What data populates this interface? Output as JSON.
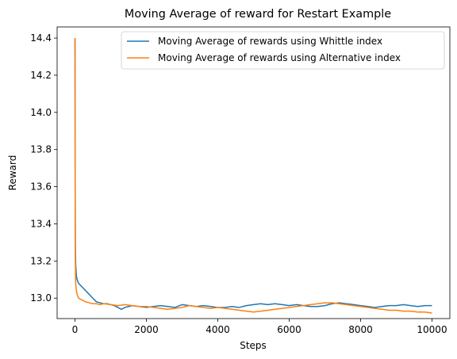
{
  "chart_data": {
    "type": "line",
    "title": "Moving Average of reward for Restart Example",
    "xlabel": "Steps",
    "ylabel": "Reward",
    "xlim": [
      -500,
      10500
    ],
    "ylim": [
      12.89,
      14.46
    ],
    "x_ticks": [
      0,
      2000,
      4000,
      6000,
      8000,
      10000
    ],
    "x_tick_labels": [
      "0",
      "2000",
      "4000",
      "6000",
      "8000",
      "10000"
    ],
    "y_ticks": [
      13.0,
      13.2,
      13.4,
      13.6,
      13.8,
      14.0,
      14.2,
      14.4
    ],
    "y_tick_labels": [
      "13.0",
      "13.2",
      "13.4",
      "13.6",
      "13.8",
      "14.0",
      "14.2",
      "14.4"
    ],
    "grid": false,
    "legend_position": "top-right",
    "series": [
      {
        "name": "Moving Average of rewards using Whittle index",
        "color": "#1f77b4",
        "x": [
          1,
          5,
          10,
          20,
          40,
          60,
          80,
          100,
          150,
          200,
          250,
          300,
          350,
          400,
          450,
          500,
          550,
          600,
          700,
          800,
          900,
          1000,
          1100,
          1200,
          1300,
          1400,
          1500,
          1600,
          1800,
          2000,
          2200,
          2400,
          2600,
          2800,
          3000,
          3200,
          3400,
          3600,
          3800,
          4000,
          4200,
          4400,
          4600,
          4800,
          5000,
          5200,
          5400,
          5600,
          5800,
          6000,
          6200,
          6400,
          6600,
          6800,
          7000,
          7200,
          7400,
          7600,
          7800,
          8000,
          8200,
          8400,
          8600,
          8800,
          9000,
          9200,
          9400,
          9600,
          9800,
          10000
        ],
        "values": [
          14.4,
          13.7,
          13.3,
          13.18,
          13.12,
          13.1,
          13.09,
          13.08,
          13.07,
          13.06,
          13.05,
          13.04,
          13.03,
          13.02,
          13.01,
          13.0,
          12.99,
          12.98,
          12.975,
          12.97,
          12.97,
          12.965,
          12.96,
          12.95,
          12.94,
          12.95,
          12.955,
          12.96,
          12.955,
          12.95,
          12.955,
          12.96,
          12.955,
          12.95,
          12.965,
          12.96,
          12.955,
          12.96,
          12.955,
          12.95,
          12.95,
          12.955,
          12.95,
          12.96,
          12.965,
          12.97,
          12.965,
          12.97,
          12.965,
          12.96,
          12.965,
          12.96,
          12.955,
          12.955,
          12.96,
          12.97,
          12.975,
          12.97,
          12.965,
          12.96,
          12.955,
          12.95,
          12.955,
          12.96,
          12.96,
          12.965,
          12.96,
          12.955,
          12.96,
          12.96
        ]
      },
      {
        "name": "Moving Average of rewards using Alternative index",
        "color": "#ff7f0e",
        "x": [
          1,
          5,
          10,
          20,
          40,
          60,
          80,
          100,
          150,
          200,
          250,
          300,
          400,
          500,
          600,
          700,
          800,
          900,
          1000,
          1200,
          1400,
          1600,
          1800,
          2000,
          2200,
          2400,
          2600,
          2800,
          3000,
          3200,
          3400,
          3600,
          3800,
          4000,
          4200,
          4400,
          4600,
          4800,
          5000,
          5200,
          5400,
          5600,
          5800,
          6000,
          6200,
          6400,
          6600,
          6800,
          7000,
          7200,
          7400,
          7600,
          7800,
          8000,
          8200,
          8400,
          8600,
          8800,
          9000,
          9200,
          9400,
          9600,
          9800,
          10000
        ],
        "values": [
          14.4,
          13.6,
          13.2,
          13.08,
          13.04,
          13.02,
          13.01,
          13.0,
          12.995,
          12.99,
          12.985,
          12.98,
          12.975,
          12.97,
          12.97,
          12.965,
          12.97,
          12.968,
          12.965,
          12.96,
          12.965,
          12.96,
          12.955,
          12.955,
          12.95,
          12.945,
          12.94,
          12.945,
          12.95,
          12.96,
          12.955,
          12.95,
          12.945,
          12.95,
          12.945,
          12.94,
          12.935,
          12.93,
          12.925,
          12.93,
          12.935,
          12.94,
          12.945,
          12.95,
          12.955,
          12.96,
          12.965,
          12.97,
          12.975,
          12.975,
          12.97,
          12.965,
          12.96,
          12.955,
          12.95,
          12.945,
          12.94,
          12.935,
          12.935,
          12.93,
          12.93,
          12.925,
          12.925,
          12.92
        ]
      }
    ]
  }
}
